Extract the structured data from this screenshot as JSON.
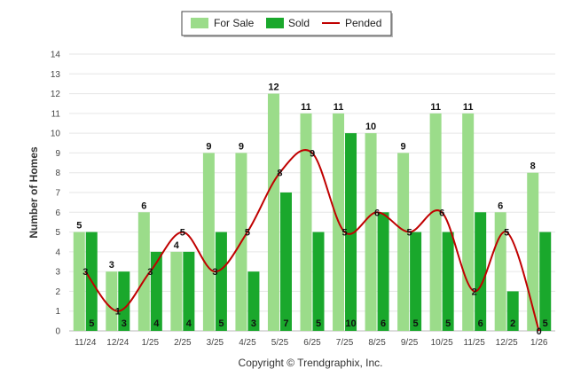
{
  "chart_data": {
    "type": "bar",
    "title": "",
    "xlabel": "",
    "ylabel": "Number of Homes",
    "ylim": [
      0,
      14
    ],
    "yticks": [
      0,
      1,
      2,
      3,
      4,
      5,
      6,
      7,
      8,
      9,
      10,
      11,
      12,
      13,
      14
    ],
    "grid": true,
    "legend_position": "top-center",
    "categories": [
      "11/24",
      "12/24",
      "1/25",
      "2/25",
      "3/25",
      "4/25",
      "5/25",
      "6/25",
      "7/25",
      "8/25",
      "9/25",
      "10/25",
      "11/25",
      "12/25",
      "1/26"
    ],
    "series": [
      {
        "name": "For Sale",
        "kind": "bar",
        "color": "#9bdc8a",
        "values": [
          5,
          3,
          6,
          4,
          9,
          9,
          12,
          11,
          11,
          10,
          9,
          11,
          11,
          6,
          8
        ]
      },
      {
        "name": "Sold",
        "kind": "bar",
        "color": "#1aa82c",
        "values": [
          5,
          3,
          4,
          4,
          5,
          3,
          7,
          5,
          10,
          6,
          5,
          5,
          6,
          2,
          5
        ]
      },
      {
        "name": "Pended",
        "kind": "line",
        "color": "#c00000",
        "values": [
          3,
          1,
          3,
          5,
          3,
          5,
          8,
          9,
          5,
          6,
          5,
          6,
          2,
          5,
          0
        ]
      }
    ],
    "credit": "Copyright © Trendgraphix, Inc."
  }
}
